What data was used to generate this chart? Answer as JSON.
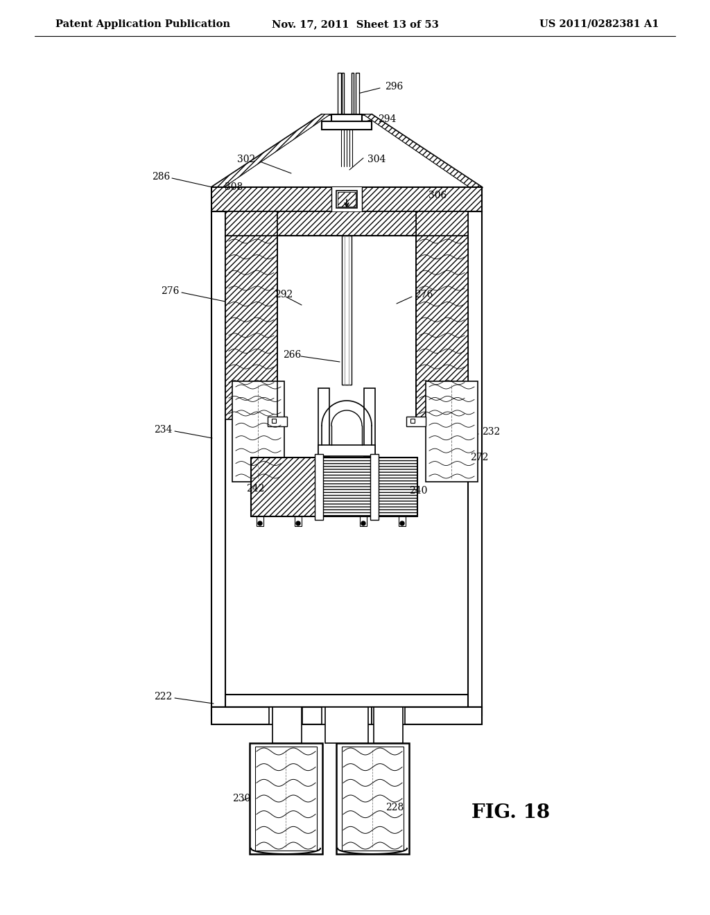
{
  "bg": "#ffffff",
  "header_left": "Patent Application Publication",
  "header_center": "Nov. 17, 2011  Sheet 13 of 53",
  "header_right": "US 2011/0282381 A1",
  "fig_label": "FIG. 18",
  "label_fs": 10,
  "header_fs": 10.5
}
